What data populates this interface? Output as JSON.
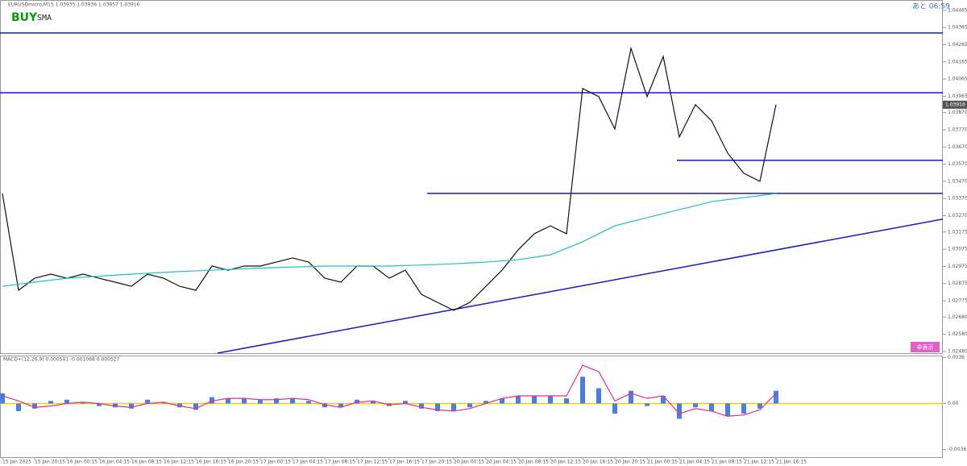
{
  "header": {
    "symbol": "EURUSDmicro,M15  1.03935 1.03936 1.03857 1.03916",
    "signal": "BUY",
    "indicator": "SMA",
    "timer": "あと 06:59",
    "button": "非表示"
  },
  "chart_data": [
    {
      "type": "line",
      "current_price": {
        "value": 1.03916,
        "label": "1.03916"
      },
      "categories": [
        "15 Jan 2025",
        null,
        "15 Jan 20:15",
        null,
        "16 Jan 00:15",
        null,
        "16 Jan 04:15",
        null,
        "16 Jan 08:15",
        null,
        "16 Jan 12:15",
        null,
        "16 Jan 16:15",
        null,
        "16 Jan 20:15",
        null,
        "17 Jan 00:15",
        null,
        "17 Jan 04:15",
        null,
        "17 Jan 08:15",
        null,
        "17 Jan 12:15",
        null,
        "17 Jan 16:15",
        null,
        "17 Jan 20:15",
        null,
        "20 Jan 00:15",
        null,
        "20 Jan 04:15",
        null,
        "20 Jan 08:15",
        null,
        "20 Jan 12:15",
        null,
        "20 Jan 16:15",
        null,
        "20 Jan 20:15",
        null,
        "21 Jan 00:15",
        null,
        "21 Jan 04:15",
        null,
        "21 Jan 08:15",
        null,
        "21 Jan 12:15",
        null,
        "21 Jan 16:15"
      ],
      "series": [
        {
          "color": "#111111",
          "values": [
            1.03399,
            1.02836,
            1.02906,
            1.0293,
            1.02906,
            1.0293,
            1.02906,
            1.02883,
            1.02859,
            1.0293,
            1.02906,
            1.02859,
            1.02836,
            1.02977,
            1.02953,
            1.02977,
            1.02977,
            1.03,
            1.03024,
            1.03,
            1.02906,
            1.02883,
            1.02977,
            1.02977,
            1.02906,
            1.02953,
            1.02812,
            1.02765,
            1.02719,
            1.02765,
            1.02859,
            1.02953,
            1.03071,
            1.03165,
            1.03211,
            1.03165,
            1.0401,
            1.03963,
            1.03775,
            1.04244,
            1.03963,
            1.04197,
            1.03728,
            1.03916,
            1.03822,
            1.03634,
            1.03517,
            1.0347,
            1.03916
          ]
        },
        {
          "color": "#20c0c0",
          "values": [
            1.02859,
            1.02871,
            1.02883,
            1.02895,
            1.02906,
            1.02912,
            1.02918,
            1.02924,
            1.0293,
            1.02935,
            1.0294,
            1.02945,
            1.02949,
            1.02953,
            1.02957,
            1.02961,
            1.02965,
            1.02968,
            1.02971,
            1.02974,
            1.02977,
            1.02977,
            1.02977,
            1.02977,
            1.02977,
            1.0298,
            1.02983,
            1.02986,
            1.0299,
            1.02995,
            1.03,
            1.03007,
            1.03014,
            1.03028,
            1.03042,
            1.0308,
            1.03118,
            1.03165,
            1.03211,
            1.03235,
            1.03258,
            1.03282,
            1.03305,
            1.03328,
            1.03352,
            1.03364,
            1.03375,
            1.03387,
            1.03399
          ]
        }
      ],
      "levels": [
        1.04334,
        1.03986,
        1.03592,
        1.034
      ],
      "trendline": [
        1.0247,
        1.0325
      ],
      "ylim": [
        1.0247,
        1.04488
      ],
      "yticks": [
        1.04465,
        1.04365,
        1.04265,
        1.04165,
        1.04065,
        1.03965,
        {
          "value": 1.0387,
          "label": "1.03870"
        },
        {
          "value": 1.0377,
          "label": "1.03770"
        },
        {
          "value": 1.0367,
          "label": "1.03670"
        },
        {
          "value": 1.0357,
          "label": "1.03570"
        },
        {
          "value": 1.0347,
          "label": "1.03470"
        },
        {
          "value": 1.0337,
          "label": "1.03370"
        },
        {
          "value": 1.0327,
          "label": "1.03270"
        },
        1.03175,
        1.03075,
        1.02975,
        1.02875,
        1.02775,
        {
          "value": 1.0268,
          "label": "1.02680"
        },
        {
          "value": 1.0258,
          "label": "1.02580"
        },
        {
          "value": 1.0248,
          "label": "1.02480"
        }
      ]
    },
    {
      "type": "macd",
      "title": "MACD+(12,26,9) 0.000541 -0.001068 0.000527",
      "series": [
        {
          "color": "#4a7fe0",
          "values": [
            0.0008,
            -0.0006,
            -0.0004,
            0.0002,
            0.0003,
            0.0001,
            -0.0002,
            -0.0003,
            -0.0004,
            0.0003,
            0.0001,
            -0.0003,
            -0.0005,
            0.0005,
            0.0004,
            0.0004,
            0.0003,
            0.0004,
            0.0004,
            0.0002,
            -0.0003,
            -0.0003,
            0.0003,
            0.0002,
            -0.0002,
            0.0002,
            -0.0004,
            -0.0006,
            -0.0006,
            -0.0003,
            0.0002,
            0.0004,
            0.0006,
            0.0006,
            0.0006,
            0.0004,
            0.0021,
            0.0012,
            -0.0008,
            0.001,
            -0.0002,
            0.0006,
            -0.0012,
            -0.0003,
            -0.0006,
            -0.001,
            -0.0008,
            -0.0004,
            0.001
          ]
        },
        {
          "color": "#e0308a",
          "values": [
            0.0006,
            0.0002,
            -0.0003,
            -0.0002,
            0,
            0.0001,
            0,
            -0.0002,
            -0.0003,
            0,
            0.0001,
            -0.0002,
            -0.0004,
            0.0002,
            0.0004,
            0.0004,
            0.0003,
            0.0003,
            0.0004,
            0.0003,
            -0.0001,
            -0.0003,
            0.0001,
            0.0002,
            -0.0001,
            0,
            -0.0003,
            -0.0005,
            -0.0006,
            -0.0004,
            0,
            0.0004,
            0.0006,
            0.0006,
            0.0006,
            0.0006,
            0.003,
            0.0025,
            0.0002,
            0.0008,
            0.0004,
            0.0006,
            -0.0008,
            -0.0004,
            -0.0006,
            -0.001,
            -0.0009,
            -0.0005,
            0.0008
          ]
        }
      ],
      "ylim": [
        -0.0044,
        0.0037
      ],
      "yticks": [
        0.0036,
        {
          "value": 0,
          "label": "0.00"
        },
        -0.0036
      ]
    }
  ]
}
